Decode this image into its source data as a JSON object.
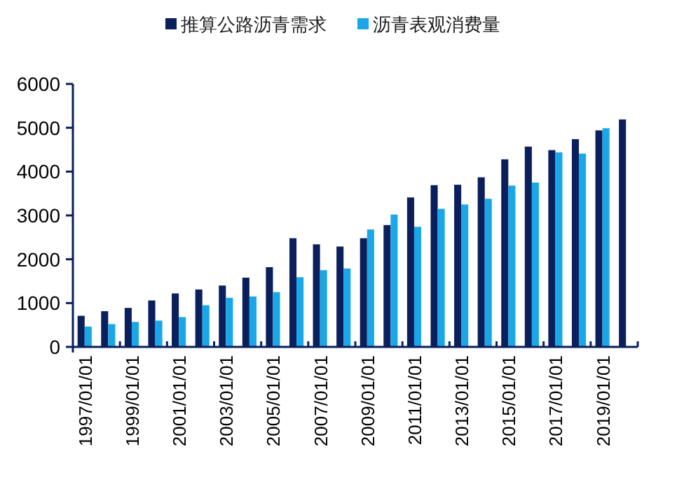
{
  "chart_data": {
    "type": "bar",
    "categories": [
      "1997/01/01",
      null,
      "1999/01/01",
      null,
      "2001/01/01",
      null,
      "2003/01/01",
      null,
      "2005/01/01",
      null,
      "2007/01/01",
      null,
      "2009/01/01",
      null,
      "2011/01/01",
      null,
      "2013/01/01",
      null,
      "2015/01/01",
      null,
      "2017/01/01",
      null,
      "2019/01/01",
      null
    ],
    "series": [
      {
        "name": "推算公路沥青需求",
        "color": "#0a1f5c",
        "values": [
          710,
          815,
          890,
          1060,
          1220,
          1310,
          1400,
          1580,
          1820,
          2480,
          2340,
          2290,
          2480,
          2780,
          3410,
          3690,
          3700,
          3870,
          4280,
          4570,
          4490,
          4740,
          4940,
          5190
        ]
      },
      {
        "name": "沥青表观消费量",
        "color": "#1aa7e8",
        "values": [
          465,
          520,
          570,
          600,
          680,
          950,
          1120,
          1150,
          1250,
          1590,
          1750,
          1790,
          2680,
          3020,
          2740,
          3150,
          3250,
          3380,
          3680,
          3750,
          4440,
          4410,
          4990,
          null
        ]
      }
    ],
    "ylim": [
      0,
      6000
    ],
    "yticks": [
      0,
      1000,
      2000,
      3000,
      4000,
      5000,
      6000
    ],
    "legend": "top",
    "grid": false
  }
}
